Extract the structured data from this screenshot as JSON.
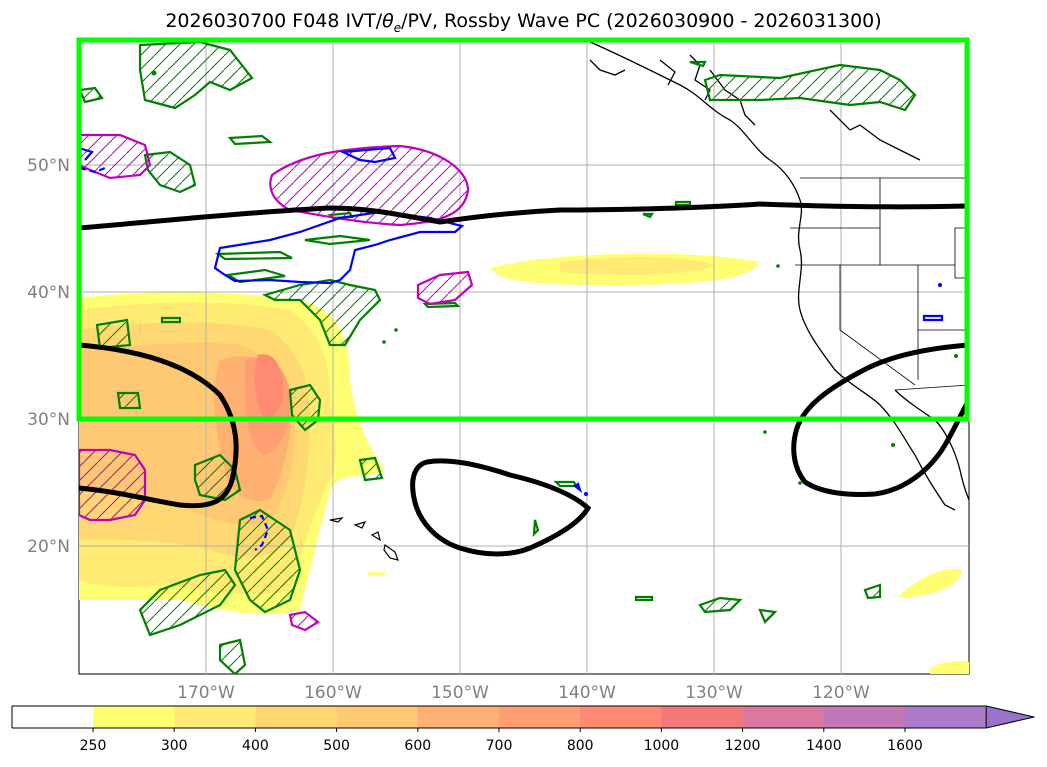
{
  "title": {
    "prefix": "2026030700 F048 IVT/",
    "theta": "θ",
    "theta_sub": "e",
    "suffix": "/PV, Rossby Wave PC (2026030900 - 2026031300)"
  },
  "map": {
    "lat_labels": [
      "50°N",
      "40°N",
      "30°N",
      "20°N"
    ],
    "lon_labels": [
      "170°W",
      "160°W",
      "150°W",
      "140°W",
      "130°W",
      "120°W"
    ]
  },
  "colorbar": {
    "ticks": [
      "250",
      "300",
      "400",
      "500",
      "600",
      "700",
      "800",
      "1000",
      "1200",
      "1400",
      "1600"
    ],
    "colors": [
      "#ffff73",
      "#ffeb73",
      "#ffd873",
      "#ffc873",
      "#ffb073",
      "#ff9e73",
      "#ff8a73",
      "#f57878",
      "#db78a0",
      "#c078b8",
      "#a87ac8"
    ],
    "extend_color": "#9a72cc"
  },
  "colors": {
    "green_box": "#00ff00",
    "black_contour": "#000000",
    "pv_green": "#007f00",
    "pv_magenta": "#bf00bf",
    "blue": "#0000ff"
  }
}
